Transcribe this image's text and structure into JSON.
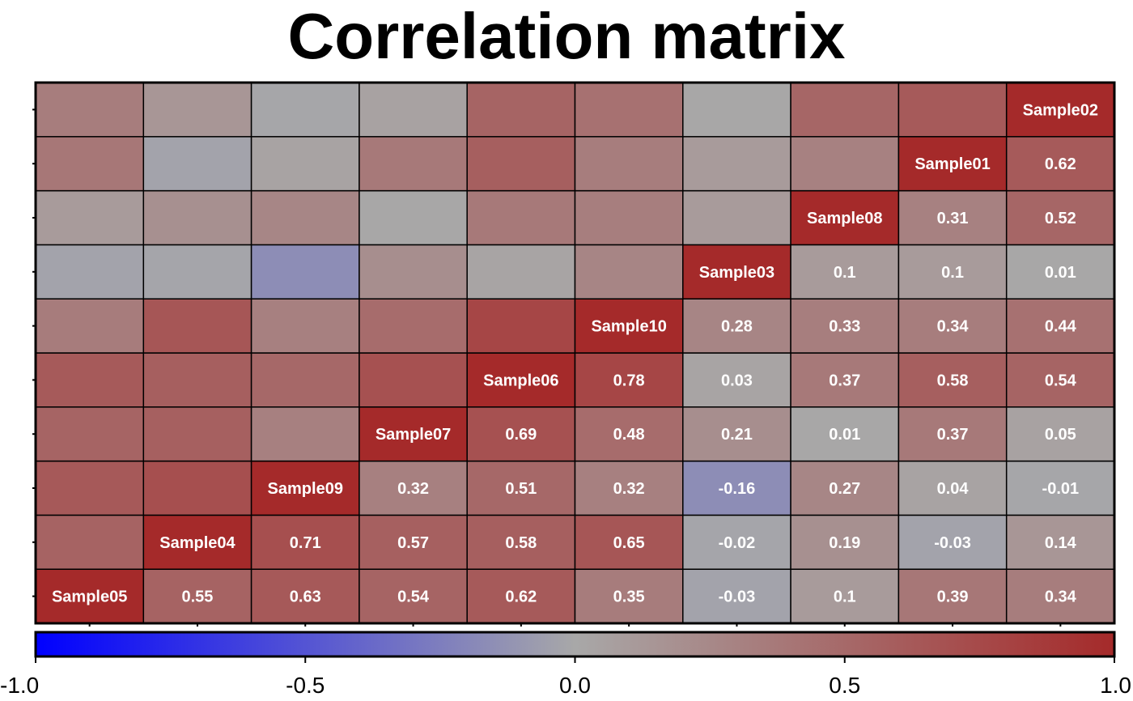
{
  "chart_data": {
    "type": "heatmap",
    "title": "Correlation matrix",
    "samples": [
      "Sample05",
      "Sample04",
      "Sample09",
      "Sample07",
      "Sample06",
      "Sample10",
      "Sample03",
      "Sample08",
      "Sample01",
      "Sample02"
    ],
    "matrix": [
      [
        1,
        0.55,
        0.63,
        0.54,
        0.62,
        0.35,
        -0.03,
        0.1,
        0.39,
        0.34
      ],
      [
        0.55,
        1,
        0.71,
        0.57,
        0.58,
        0.65,
        -0.02,
        0.19,
        -0.03,
        0.14
      ],
      [
        0.63,
        0.71,
        1,
        0.32,
        0.51,
        0.32,
        -0.16,
        0.27,
        0.04,
        -0.01
      ],
      [
        0.54,
        0.57,
        0.32,
        1,
        0.69,
        0.48,
        0.21,
        0.01,
        0.37,
        0.05
      ],
      [
        0.62,
        0.58,
        0.51,
        0.69,
        1,
        0.78,
        0.03,
        0.37,
        0.58,
        0.54
      ],
      [
        0.35,
        0.65,
        0.32,
        0.48,
        0.78,
        1,
        0.28,
        0.33,
        0.34,
        0.44
      ],
      [
        -0.03,
        -0.02,
        -0.16,
        0.21,
        0.03,
        0.28,
        1,
        0.1,
        0.1,
        0.01
      ],
      [
        0.1,
        0.19,
        0.27,
        0.01,
        0.37,
        0.33,
        0.1,
        1,
        0.31,
        0.52
      ],
      [
        0.39,
        -0.03,
        0.04,
        0.37,
        0.58,
        0.34,
        0.1,
        0.31,
        1,
        0.62
      ],
      [
        0.34,
        0.14,
        -0.01,
        0.05,
        0.54,
        0.44,
        0.01,
        0.52,
        0.62,
        1
      ]
    ],
    "labels_shown": "lower-right triangle and diagonal",
    "colorbar": {
      "range": [
        -1.0,
        1.0
      ],
      "ticks": [
        "-1.0",
        "-0.5",
        "0.0",
        "0.5",
        "1.0"
      ],
      "colors": {
        "low": "#0000ff",
        "mid": "#a8a8a8",
        "high": "#a52a2a"
      }
    },
    "grid": true,
    "legend_position": "bottom"
  }
}
